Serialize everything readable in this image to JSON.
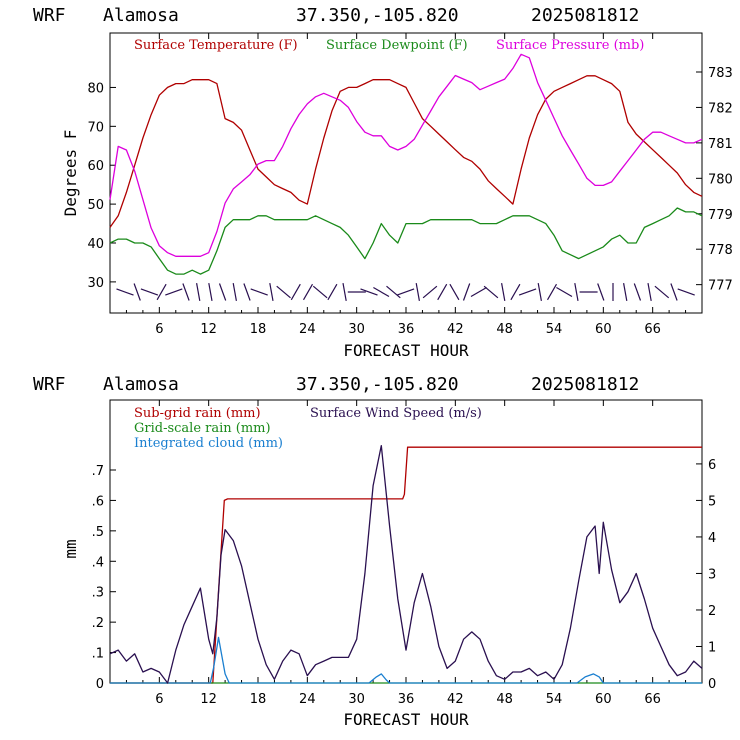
{
  "chart_data": [
    {
      "type": "line",
      "header": {
        "model": "WRF",
        "station": "Alamosa",
        "coords": "37.350,-105.820",
        "init": "2025081812"
      },
      "xlabel": "FORECAST HOUR",
      "ylabel": "Degrees F",
      "xlim": [
        0,
        72
      ],
      "x_ticks": [
        "6",
        "12",
        "18",
        "24",
        "30",
        "36",
        "42",
        "48",
        "54",
        "60",
        "66"
      ],
      "ylim": [
        22,
        94
      ],
      "y_ticks": [
        "30",
        "40",
        "50",
        "60",
        "70",
        "80"
      ],
      "y2lim": [
        776.2,
        784.1
      ],
      "y2_ticks": [
        "777",
        "778",
        "779",
        "780",
        "781",
        "782",
        "783"
      ],
      "legend": [
        "Surface Temperature (F)",
        "Surface Dewpoint (F)",
        "Surface Pressure (mb)"
      ],
      "colors": {
        "temperature": "#b00000",
        "dewpoint": "#1a8a1a",
        "pressure": "#dd00dd",
        "barbs": "#2a1050"
      },
      "series": [
        {
          "name": "Surface Temperature (F)",
          "axis": "left",
          "x": [
            0,
            1,
            2,
            3,
            4,
            5,
            6,
            7,
            8,
            9,
            10,
            11,
            12,
            13,
            14,
            15,
            16,
            17,
            18,
            19,
            20,
            21,
            22,
            23,
            24,
            25,
            26,
            27,
            28,
            29,
            30,
            31,
            32,
            33,
            34,
            35,
            36,
            37,
            38,
            39,
            40,
            41,
            42,
            43,
            44,
            45,
            46,
            47,
            48,
            49,
            50,
            51,
            52,
            53,
            54,
            55,
            56,
            57,
            58,
            59,
            60,
            61,
            62,
            63,
            64,
            65,
            66,
            67,
            68,
            69,
            70,
            71,
            72
          ],
          "values": [
            44,
            47,
            53,
            60,
            67,
            73,
            78,
            80,
            81,
            81,
            82,
            82,
            82,
            81,
            72,
            71,
            69,
            64,
            59,
            57,
            55,
            54,
            53,
            51,
            50,
            59,
            67,
            74,
            79,
            80,
            80,
            81,
            82,
            82,
            82,
            81,
            80,
            76,
            72,
            70,
            68,
            66,
            64,
            62,
            61,
            59,
            56,
            54,
            52,
            50,
            59,
            67,
            73,
            77,
            79,
            80,
            81,
            82,
            83,
            83,
            82,
            81,
            79,
            71,
            68,
            66,
            64,
            62,
            60,
            58,
            55,
            53,
            52
          ]
        },
        {
          "name": "Surface Dewpoint (F)",
          "axis": "left",
          "x": [
            0,
            1,
            2,
            3,
            4,
            5,
            6,
            7,
            8,
            9,
            10,
            11,
            12,
            13,
            14,
            15,
            16,
            17,
            18,
            19,
            20,
            21,
            22,
            23,
            24,
            25,
            26,
            27,
            28,
            29,
            30,
            31,
            32,
            33,
            34,
            35,
            36,
            37,
            38,
            39,
            40,
            41,
            42,
            43,
            44,
            45,
            46,
            47,
            48,
            49,
            50,
            51,
            52,
            53,
            54,
            55,
            56,
            57,
            58,
            59,
            60,
            61,
            62,
            63,
            64,
            65,
            66,
            67,
            68,
            69,
            70,
            71,
            72
          ],
          "values": [
            40,
            41,
            41,
            40,
            40,
            39,
            36,
            33,
            32,
            32,
            33,
            32,
            33,
            38,
            44,
            46,
            46,
            46,
            47,
            47,
            46,
            46,
            46,
            46,
            46,
            47,
            46,
            45,
            44,
            42,
            39,
            36,
            40,
            45,
            42,
            40,
            45,
            45,
            45,
            46,
            46,
            46,
            46,
            46,
            46,
            45,
            45,
            45,
            46,
            47,
            47,
            47,
            46,
            45,
            42,
            38,
            37,
            36,
            37,
            38,
            39,
            41,
            42,
            40,
            40,
            44,
            45,
            46,
            47,
            49,
            48,
            48,
            47
          ]
        },
        {
          "name": "Surface Pressure (mb)",
          "axis": "right",
          "x": [
            0,
            1,
            2,
            3,
            4,
            5,
            6,
            7,
            8,
            9,
            10,
            11,
            12,
            13,
            14,
            15,
            16,
            17,
            18,
            19,
            20,
            21,
            22,
            23,
            24,
            25,
            26,
            27,
            28,
            29,
            30,
            31,
            32,
            33,
            34,
            35,
            36,
            37,
            38,
            39,
            40,
            41,
            42,
            43,
            44,
            45,
            46,
            47,
            48,
            49,
            50,
            51,
            52,
            53,
            54,
            55,
            56,
            57,
            58,
            59,
            60,
            61,
            62,
            63,
            64,
            65,
            66,
            67,
            68,
            69,
            70,
            71,
            72
          ],
          "values": [
            779.4,
            780.9,
            780.8,
            780.2,
            779.4,
            778.6,
            778.1,
            777.9,
            777.8,
            777.8,
            777.8,
            777.8,
            777.9,
            778.5,
            779.3,
            779.7,
            779.9,
            780.1,
            780.4,
            780.5,
            780.5,
            780.9,
            781.4,
            781.8,
            782.1,
            782.3,
            782.4,
            782.3,
            782.2,
            782.0,
            781.6,
            781.3,
            781.2,
            781.2,
            780.9,
            780.8,
            780.9,
            781.1,
            781.5,
            781.9,
            782.3,
            782.6,
            782.9,
            782.8,
            782.7,
            782.5,
            782.6,
            782.7,
            782.8,
            783.1,
            783.5,
            783.4,
            782.7,
            782.2,
            781.7,
            781.2,
            780.8,
            780.4,
            780.0,
            779.8,
            779.8,
            779.9,
            780.2,
            780.5,
            780.8,
            781.1,
            781.3,
            781.3,
            781.2,
            781.1,
            781.0,
            781.0,
            781.1
          ]
        }
      ]
    },
    {
      "type": "line",
      "header": {
        "model": "WRF",
        "station": "Alamosa",
        "coords": "37.350,-105.820",
        "init": "2025081812"
      },
      "xlabel": "FORECAST HOUR",
      "ylabel": "mm",
      "xlim": [
        0,
        72
      ],
      "x_ticks": [
        "6",
        "12",
        "18",
        "24",
        "30",
        "36",
        "42",
        "48",
        "54",
        "60",
        "66"
      ],
      "ylim": [
        0,
        0.93
      ],
      "y_ticks": [
        "0",
        ".1",
        ".2",
        ".3",
        ".4",
        ".5",
        ".6",
        ".7"
      ],
      "y2lim": [
        0,
        7.75
      ],
      "y2_ticks": [
        "0",
        "1",
        "2",
        "3",
        "4",
        "5",
        "6"
      ],
      "legend": [
        "Sub-grid rain (mm)",
        "Grid-scale rain (mm)",
        "Integrated cloud (mm)",
        "Surface Wind Speed (m/s)"
      ],
      "colors": {
        "subgrid": "#b00000",
        "gridscale": "#1a8a1a",
        "cloud": "#1a7fd0",
        "wind": "#2a1050"
      },
      "series": [
        {
          "name": "Sub-grid rain (mm)",
          "axis": "left",
          "x": [
            0,
            12.5,
            13.2,
            13.9,
            14.3,
            35.6,
            35.8,
            36.2,
            72
          ],
          "values": [
            0,
            0,
            0.3,
            0.6,
            0.605,
            0.605,
            0.62,
            0.775,
            0.775
          ]
        },
        {
          "name": "Grid-scale rain (mm)",
          "axis": "left",
          "x": [
            0,
            72
          ],
          "values": [
            0,
            0
          ]
        },
        {
          "name": "Integrated cloud (mm)",
          "axis": "left",
          "x": [
            0,
            12.2,
            12.6,
            12.9,
            13.2,
            13.6,
            14,
            14.5,
            31.5,
            32.4,
            33,
            33.6,
            34,
            56.8,
            57.8,
            58.8,
            59.5,
            60,
            72
          ],
          "values": [
            0,
            0,
            0.05,
            0.1,
            0.15,
            0.09,
            0.03,
            0,
            0,
            0.02,
            0.03,
            0.01,
            0,
            0,
            0.02,
            0.03,
            0.02,
            0,
            0
          ]
        },
        {
          "name": "Surface Wind Speed (m/s)",
          "axis": "right",
          "x": [
            0,
            1,
            2,
            3,
            4,
            5,
            6,
            7,
            8,
            9,
            10,
            11,
            12,
            12.5,
            13,
            13.5,
            14,
            15,
            16,
            17,
            18,
            19,
            20,
            21,
            22,
            23,
            24,
            25,
            26,
            27,
            28,
            29,
            30,
            31,
            32,
            33,
            34,
            35,
            36,
            37,
            38,
            39,
            40,
            41,
            42,
            43,
            44,
            45,
            46,
            47,
            48,
            49,
            50,
            51,
            52,
            53,
            54,
            55,
            56,
            57,
            58,
            59,
            59.5,
            60,
            61,
            62,
            63,
            64,
            65,
            66,
            67,
            68,
            69,
            70,
            71,
            72
          ],
          "values": [
            0.8,
            0.9,
            0.6,
            0.8,
            0.3,
            0.4,
            0.3,
            0.0,
            0.9,
            1.6,
            2.1,
            2.6,
            1.2,
            0.8,
            1.8,
            3.5,
            4.2,
            3.9,
            3.2,
            2.2,
            1.2,
            0.5,
            0.1,
            0.6,
            0.9,
            0.8,
            0.2,
            0.5,
            0.6,
            0.7,
            0.7,
            0.7,
            1.2,
            3.0,
            5.4,
            6.5,
            4.3,
            2.3,
            0.9,
            2.2,
            3.0,
            2.1,
            1.0,
            0.4,
            0.6,
            1.2,
            1.4,
            1.2,
            0.6,
            0.2,
            0.1,
            0.3,
            0.3,
            0.4,
            0.2,
            0.3,
            0.1,
            0.5,
            1.5,
            2.8,
            4.0,
            4.3,
            3.0,
            4.4,
            3.1,
            2.2,
            2.5,
            3.0,
            2.3,
            1.5,
            1.0,
            0.5,
            0.2,
            0.3,
            0.6,
            0.4
          ]
        }
      ]
    }
  ]
}
